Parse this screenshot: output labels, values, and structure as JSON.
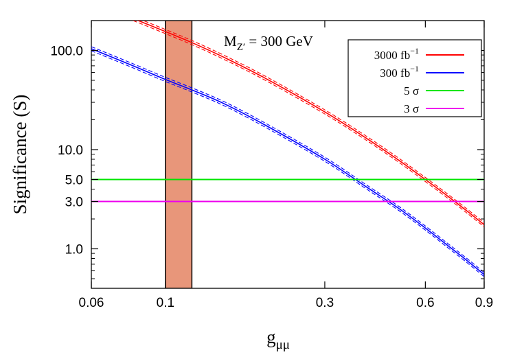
{
  "chart_data": {
    "type": "line",
    "title": "",
    "annotation": {
      "main": "M",
      "sub": "Z′",
      "rest": " = 300 GeV"
    },
    "xlabel": {
      "main": "g",
      "sub": "μμ"
    },
    "ylabel": "Significance (S)",
    "xscale": "log",
    "yscale": "log",
    "xlim": [
      0.06,
      0.9
    ],
    "ylim": [
      0.4,
      200
    ],
    "x_ticks": [
      {
        "value": 0.06,
        "label": "0.06"
      },
      {
        "value": 0.1,
        "label": "0.1"
      },
      {
        "value": 0.3,
        "label": "0.3"
      },
      {
        "value": 0.6,
        "label": "0.6"
      },
      {
        "value": 0.9,
        "label": "0.9"
      }
    ],
    "y_ticks": [
      {
        "value": 1,
        "label": "1.0"
      },
      {
        "value": 3,
        "label": "3.0"
      },
      {
        "value": 5,
        "label": "5.0"
      },
      {
        "value": 10,
        "label": "10.0"
      },
      {
        "value": 100,
        "label": "100.0"
      }
    ],
    "band": {
      "x": [
        0.1,
        0.12
      ],
      "color": "#e8967a"
    },
    "legend_position": "top-right",
    "series": [
      {
        "legend_main": "3000 fb",
        "legend_sup": "−1",
        "color": "#ff0000",
        "x": [
          0.08,
          0.1,
          0.12,
          0.15,
          0.2,
          0.3,
          0.4,
          0.5,
          0.6,
          0.7,
          0.8,
          0.9
        ],
        "y": [
          210,
          155,
          120,
          85,
          52,
          24,
          13,
          7.8,
          5.0,
          3.4,
          2.4,
          1.75
        ]
      },
      {
        "legend_main": "300 fb",
        "legend_sup": "−1",
        "color": "#0000ff",
        "x": [
          0.06,
          0.08,
          0.1,
          0.12,
          0.15,
          0.2,
          0.3,
          0.4,
          0.5,
          0.6,
          0.7,
          0.8,
          0.9
        ],
        "y": [
          104,
          70,
          51,
          40,
          29,
          17.5,
          8.0,
          4.2,
          2.55,
          1.62,
          1.08,
          0.76,
          0.55
        ]
      },
      {
        "legend_main": "5 σ",
        "legend_sup": "",
        "color": "#00e600",
        "x": [
          0.06,
          0.9
        ],
        "y": [
          5,
          5
        ]
      },
      {
        "legend_main": "3 σ",
        "legend_sup": "",
        "color": "#ee00ee",
        "x": [
          0.06,
          0.9
        ],
        "y": [
          3,
          3
        ]
      }
    ]
  }
}
